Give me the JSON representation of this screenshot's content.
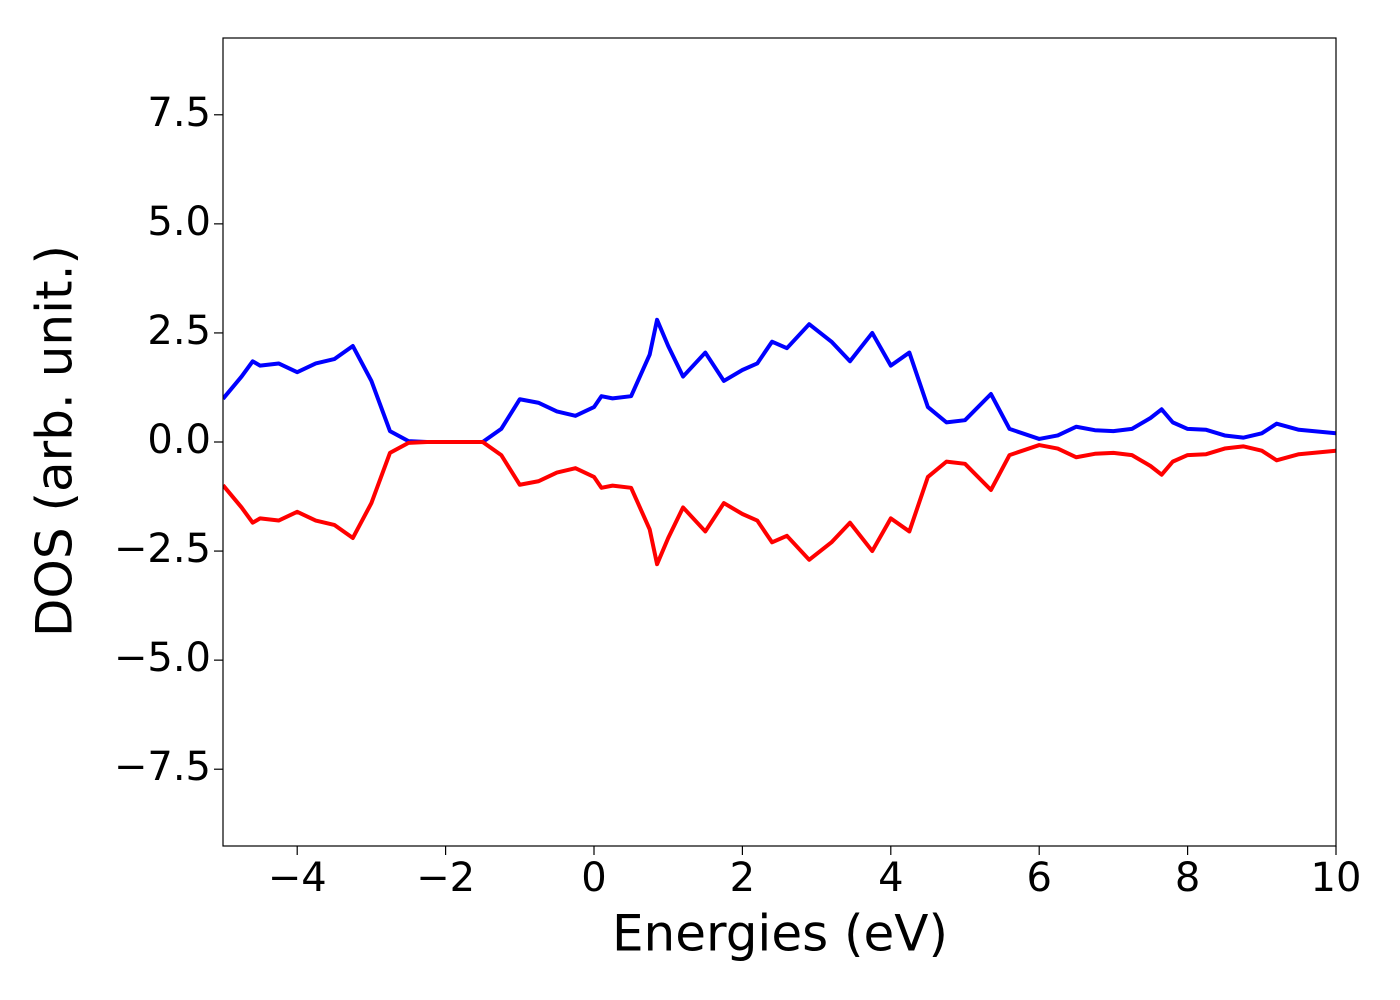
{
  "chart_data": {
    "type": "line",
    "xlabel": "Energies (eV)",
    "ylabel": "DOS (arb. unit.)",
    "x": [
      -5,
      -4.75,
      -4.6,
      -4.5,
      -4.25,
      -4,
      -3.75,
      -3.5,
      -3.25,
      -3,
      -2.75,
      -2.5,
      -2.25,
      -2,
      -1.75,
      -1.5,
      -1.25,
      -1,
      -0.75,
      -0.5,
      -0.25,
      0,
      0.1,
      0.25,
      0.5,
      0.75,
      0.85,
      1,
      1.2,
      1.5,
      1.75,
      2,
      2.2,
      2.4,
      2.6,
      2.9,
      3.2,
      3.45,
      3.75,
      4,
      4.25,
      4.5,
      4.75,
      5,
      5.35,
      5.6,
      6,
      6.25,
      6.5,
      6.75,
      7,
      7.25,
      7.5,
      7.65,
      7.8,
      8,
      8.25,
      8.5,
      8.75,
      9,
      9.2,
      9.5,
      10
    ],
    "series": [
      {
        "color": "#0000ff",
        "values": [
          0.99,
          1.5,
          1.85,
          1.75,
          1.8,
          1.6,
          1.8,
          1.9,
          2.2,
          1.4,
          0.25,
          0.02,
          0,
          0,
          0,
          0,
          0.3,
          0.98,
          0.9,
          0.7,
          0.6,
          0.8,
          1.05,
          1.0,
          1.05,
          2.0,
          2.8,
          2.2,
          1.5,
          2.05,
          1.4,
          1.65,
          1.8,
          2.3,
          2.15,
          2.7,
          2.3,
          1.85,
          2.5,
          1.75,
          2.05,
          0.8,
          0.45,
          0.5,
          1.1,
          0.3,
          0.07,
          0.15,
          0.35,
          0.27,
          0.25,
          0.3,
          0.55,
          0.75,
          0.45,
          0.3,
          0.28,
          0.15,
          0.1,
          0.2,
          0.42,
          0.28,
          0.2
        ]
      },
      {
        "color": "#ff0000",
        "values": [
          -0.99,
          -1.5,
          -1.85,
          -1.75,
          -1.8,
          -1.6,
          -1.8,
          -1.9,
          -2.2,
          -1.4,
          -0.25,
          -0.02,
          0,
          0,
          0,
          0,
          -0.3,
          -0.98,
          -0.9,
          -0.7,
          -0.6,
          -0.8,
          -1.05,
          -1.0,
          -1.05,
          -2.0,
          -2.8,
          -2.2,
          -1.5,
          -2.05,
          -1.4,
          -1.65,
          -1.8,
          -2.3,
          -2.15,
          -2.7,
          -2.3,
          -1.85,
          -2.5,
          -1.75,
          -2.05,
          -0.8,
          -0.45,
          -0.5,
          -1.1,
          -0.3,
          -0.07,
          -0.15,
          -0.35,
          -0.27,
          -0.25,
          -0.3,
          -0.55,
          -0.75,
          -0.45,
          -0.3,
          -0.28,
          -0.15,
          -0.1,
          -0.2,
          -0.42,
          -0.28,
          -0.2
        ]
      }
    ],
    "xlim": [
      -5,
      10
    ],
    "ylim": [
      -9.26,
      9.26
    ],
    "xticks": [
      {
        "value": -4,
        "label": "−4"
      },
      {
        "value": -2,
        "label": "−2"
      },
      0,
      2,
      4,
      6,
      8,
      10
    ],
    "yticks": [
      {
        "value": -7.5,
        "label": "−7.5"
      },
      {
        "value": -5,
        "label": "−5.0"
      },
      {
        "value": -2.5,
        "label": "−2.5"
      },
      {
        "value": 0,
        "label": "0.0"
      },
      2.5,
      {
        "value": 5,
        "label": "5.0"
      },
      7.5
    ]
  }
}
